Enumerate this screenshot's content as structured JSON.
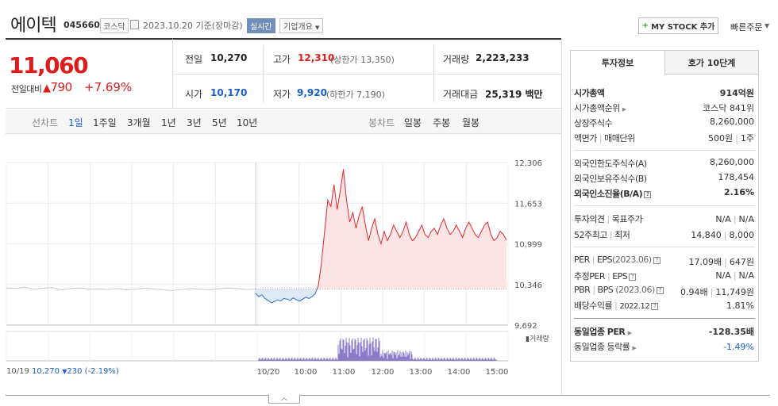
{
  "header": {
    "name": "에이텍",
    "code": "045660",
    "market": "코스닥",
    "date": "2023.10.20 기준(장마감)",
    "live_badge": "실시간",
    "corp_info": "기업개요",
    "mystock_label": "MY STOCK 추가",
    "quick_order": "빠른주문"
  },
  "price": {
    "current": "11,060",
    "change_label": "전일대비",
    "change_amount": "790",
    "change_pct": "+7.69%"
  },
  "info": {
    "prev_label": "전일",
    "prev": "10,270",
    "high_label": "고가",
    "high": "12,310",
    "upper_limit": "(상한가 13,350)",
    "volume_label": "거래량",
    "volume": "2,223,233",
    "open_label": "시가",
    "open": "10,170",
    "low_label": "저가",
    "low": "9,920",
    "lower_limit": "(하한가 7,190)",
    "amount_label": "거래대금",
    "amount": "25,319",
    "amount_unit": "백만"
  },
  "tabs": {
    "line_label": "선차트",
    "line_items": [
      "1일",
      "1주일",
      "3개월",
      "1년",
      "3년",
      "5년",
      "10년"
    ],
    "selected": "1일",
    "candle_label": "봉차트",
    "candle_items": [
      "일봉",
      "주봉",
      "월봉"
    ]
  },
  "chart_data": {
    "type": "line",
    "y_ticks": [
      "12,306",
      "11,653",
      "10,999",
      "10,346",
      "9,692"
    ],
    "ylim": [
      9692,
      12306
    ],
    "reference_price": 10270,
    "x_ticks": [
      "10/20",
      "10:00",
      "11:00",
      "12:00",
      "13:00",
      "14:00",
      "15:00"
    ],
    "volume_label": "거래량",
    "prev_day": {
      "date": "10/19",
      "close": "10,270",
      "change": "230",
      "change_pct": "(-2.19%)"
    },
    "prev_series": [
      10290,
      10280,
      10300,
      10270,
      10285,
      10295,
      10260,
      10280,
      10290,
      10270,
      10275,
      10265,
      10280,
      10260,
      10270,
      10285,
      10275,
      10260,
      10250,
      10265,
      10280,
      10270,
      10260,
      10275,
      10290,
      10280,
      10265,
      10270
    ],
    "today_series": [
      10200,
      10150,
      10180,
      10120,
      10090,
      10050,
      10070,
      10100,
      10080,
      10120,
      10110,
      10090,
      10130,
      10100,
      10080,
      10110,
      10140,
      10120,
      10150,
      10200,
      10330,
      10700,
      11200,
      11700,
      11600,
      11950,
      11550,
      11850,
      12200,
      11700,
      11350,
      11500,
      11250,
      11450,
      11600,
      11300,
      11050,
      11250,
      11400,
      11150,
      11000,
      11200,
      11050,
      11150,
      11300,
      11200,
      11100,
      11200,
      11350,
      11150,
      11050,
      11100,
      11200,
      11300,
      11150,
      11100,
      11200,
      11250,
      11150,
      11300,
      11400,
      11250,
      11150,
      11200,
      11300,
      11200,
      11100,
      11250,
      11350,
      11250,
      11150,
      11100,
      11200,
      11300,
      11350,
      11150,
      11050,
      11100,
      11200,
      11150,
      11060
    ]
  },
  "right": {
    "tab1": "투자정보",
    "tab2": "호가 10단계",
    "mcap_label": "시가총액",
    "mcap": "914억원",
    "mcap_rank_label": "시가총액순위",
    "mcap_rank": "코스닥 841위",
    "shares_label": "상장주식수",
    "shares": "8,260,000",
    "par_label": "액면가",
    "unit_label": "매매단위",
    "par": "500원",
    "unit": "1주",
    "foreign_limit_label": "외국인한도주식수(A)",
    "foreign_limit": "8,260,000",
    "foreign_hold_label": "외국인보유주식수(B)",
    "foreign_hold": "178,454",
    "foreign_ratio_label": "외국인소진율(B/A)",
    "foreign_ratio": "2.16%",
    "opinion_label": "투자의견",
    "target_label": "목표주가",
    "opinion": "N/A",
    "target": "N/A",
    "w52_high_label": "52주최고",
    "w52_low_label": "최저",
    "w52_high": "14,840",
    "w52_low": "8,000",
    "per_label": "PER",
    "eps_label": "EPS",
    "per_period": "(2023.06)",
    "per": "17.09배",
    "eps": "647원",
    "est_per_label": "추정PER",
    "est_eps_label": "EPS",
    "est_per": "N/A",
    "est_eps": "N/A",
    "pbr_label": "PBR",
    "bps_label": "BPS",
    "pbr_period": "(2023.06)",
    "pbr": "0.94배",
    "bps": "11,749원",
    "div_label": "배당수익률",
    "div_period": "2022.12",
    "div": "1.81%",
    "ind_per_label": "동일업종 PER",
    "ind_per": "-128.35배",
    "ind_rate_label": "동일업종 등락률",
    "ind_rate": "-1.49%"
  }
}
